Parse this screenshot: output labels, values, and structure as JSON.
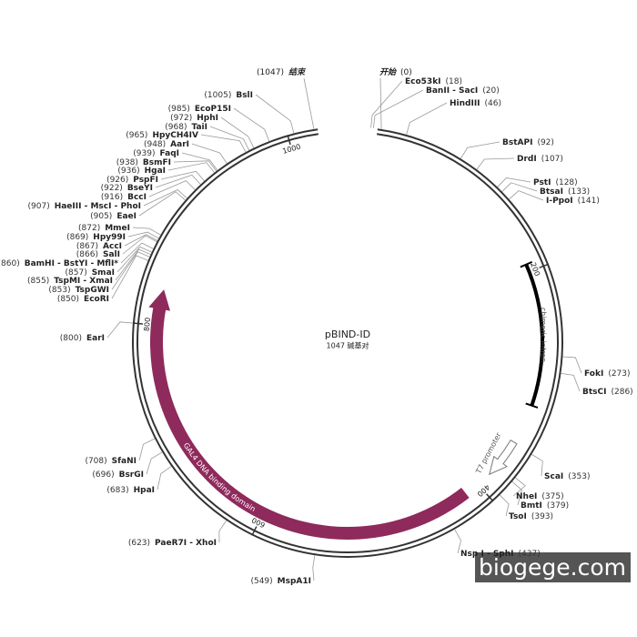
{
  "title": "pBIND-ID",
  "length": {
    "value": 1047,
    "label": "1047 碱基对"
  },
  "start": {
    "label": "开始",
    "position": {
      "value": 0,
      "label": "(0)"
    }
  },
  "end": {
    "label": "结束",
    "position": {
      "value": 1047,
      "label": "(1047)"
    }
  },
  "ring_ticks": [
    200,
    400,
    600,
    800,
    1000
  ],
  "features": [
    {
      "name": "chimeric intron"
    },
    {
      "name": "T7 promoter"
    },
    {
      "name": "GAL4 DNA binding domain"
    }
  ],
  "sites": [
    {
      "name": "Eco53kI",
      "position": {
        "value": 18,
        "label": "(18)"
      }
    },
    {
      "name": "BanII - SacI",
      "position": {
        "value": 20,
        "label": "(20)"
      }
    },
    {
      "name": "HindIII",
      "position": {
        "value": 46,
        "label": "(46)"
      }
    },
    {
      "name": "BstAPI",
      "position": {
        "value": 92,
        "label": "(92)"
      }
    },
    {
      "name": "DrdI",
      "position": {
        "value": 107,
        "label": "(107)"
      }
    },
    {
      "name": "PstI",
      "position": {
        "value": 128,
        "label": "(128)"
      }
    },
    {
      "name": "BtsaI",
      "position": {
        "value": 133,
        "label": "(133)"
      }
    },
    {
      "name": "I-PpoI",
      "position": {
        "value": 141,
        "label": "(141)"
      }
    },
    {
      "name": "FokI",
      "position": {
        "value": 273,
        "label": "(273)"
      }
    },
    {
      "name": "BtsCI",
      "position": {
        "value": 286,
        "label": "(286)"
      }
    },
    {
      "name": "ScaI",
      "position": {
        "value": 353,
        "label": "(353)"
      }
    },
    {
      "name": "NheI",
      "position": {
        "value": 375,
        "label": "(375)"
      }
    },
    {
      "name": "BmtI",
      "position": {
        "value": 379,
        "label": "(379)"
      }
    },
    {
      "name": "TsoI",
      "position": {
        "value": 393,
        "label": "(393)"
      }
    },
    {
      "name": "Nsp I - SphI",
      "position": {
        "value": 437,
        "label": "(437)"
      }
    },
    {
      "name": "MspA1I",
      "position": {
        "value": 549,
        "label": "(549)"
      }
    },
    {
      "name": "PaeR7I - XhoI",
      "position": {
        "value": 623,
        "label": "(623)"
      }
    },
    {
      "name": "HpaI",
      "position": {
        "value": 683,
        "label": "(683)"
      }
    },
    {
      "name": "BsrGI",
      "position": {
        "value": 696,
        "label": "(696)"
      }
    },
    {
      "name": "SfaNI",
      "position": {
        "value": 708,
        "label": "(708)"
      }
    },
    {
      "name": "EarI",
      "position": {
        "value": 800,
        "label": "(800)"
      }
    },
    {
      "name": "EcoRI",
      "position": {
        "value": 850,
        "label": "(850)"
      }
    },
    {
      "name": "TspGWI",
      "position": {
        "value": 853,
        "label": "(853)"
      }
    },
    {
      "name": "TspMI - XmaI",
      "position": {
        "value": 855,
        "label": "(855)"
      }
    },
    {
      "name": "SmaI",
      "position": {
        "value": 857,
        "label": "(857)"
      }
    },
    {
      "name": "BamHI - BstYI - MflI*",
      "position": {
        "value": 860,
        "label": "(860)"
      }
    },
    {
      "name": "SalI",
      "position": {
        "value": 866,
        "label": "(866)"
      }
    },
    {
      "name": "AccI",
      "position": {
        "value": 867,
        "label": "(867)"
      }
    },
    {
      "name": "Hpy99I",
      "position": {
        "value": 869,
        "label": "(869)"
      }
    },
    {
      "name": "MmeI",
      "position": {
        "value": 872,
        "label": "(872)"
      }
    },
    {
      "name": "EaeI",
      "position": {
        "value": 905,
        "label": "(905)"
      }
    },
    {
      "name": "HaeIII - MscI - PhoI",
      "position": {
        "value": 907,
        "label": "(907)"
      }
    },
    {
      "name": "BccI",
      "position": {
        "value": 916,
        "label": "(916)"
      }
    },
    {
      "name": "BseYI",
      "position": {
        "value": 922,
        "label": "(922)"
      }
    },
    {
      "name": "PspFI",
      "position": {
        "value": 926,
        "label": "(926)"
      }
    },
    {
      "name": "HgaI",
      "position": {
        "value": 936,
        "label": "(936)"
      }
    },
    {
      "name": "BsmFI",
      "position": {
        "value": 938,
        "label": "(938)"
      }
    },
    {
      "name": "FaqI",
      "position": {
        "value": 939,
        "label": "(939)"
      }
    },
    {
      "name": "AarI",
      "position": {
        "value": 948,
        "label": "(948)"
      }
    },
    {
      "name": "HpyCH4IV",
      "position": {
        "value": 965,
        "label": "(965)"
      }
    },
    {
      "name": "TaiI",
      "position": {
        "value": 968,
        "label": "(968)"
      }
    },
    {
      "name": "HphI",
      "position": {
        "value": 972,
        "label": "(972)"
      }
    },
    {
      "name": "EcoP15I",
      "position": {
        "value": 985,
        "label": "(985)"
      }
    },
    {
      "name": "BslI",
      "position": {
        "value": 1005,
        "label": "(1005)"
      }
    }
  ],
  "watermark": "biogege.com"
}
